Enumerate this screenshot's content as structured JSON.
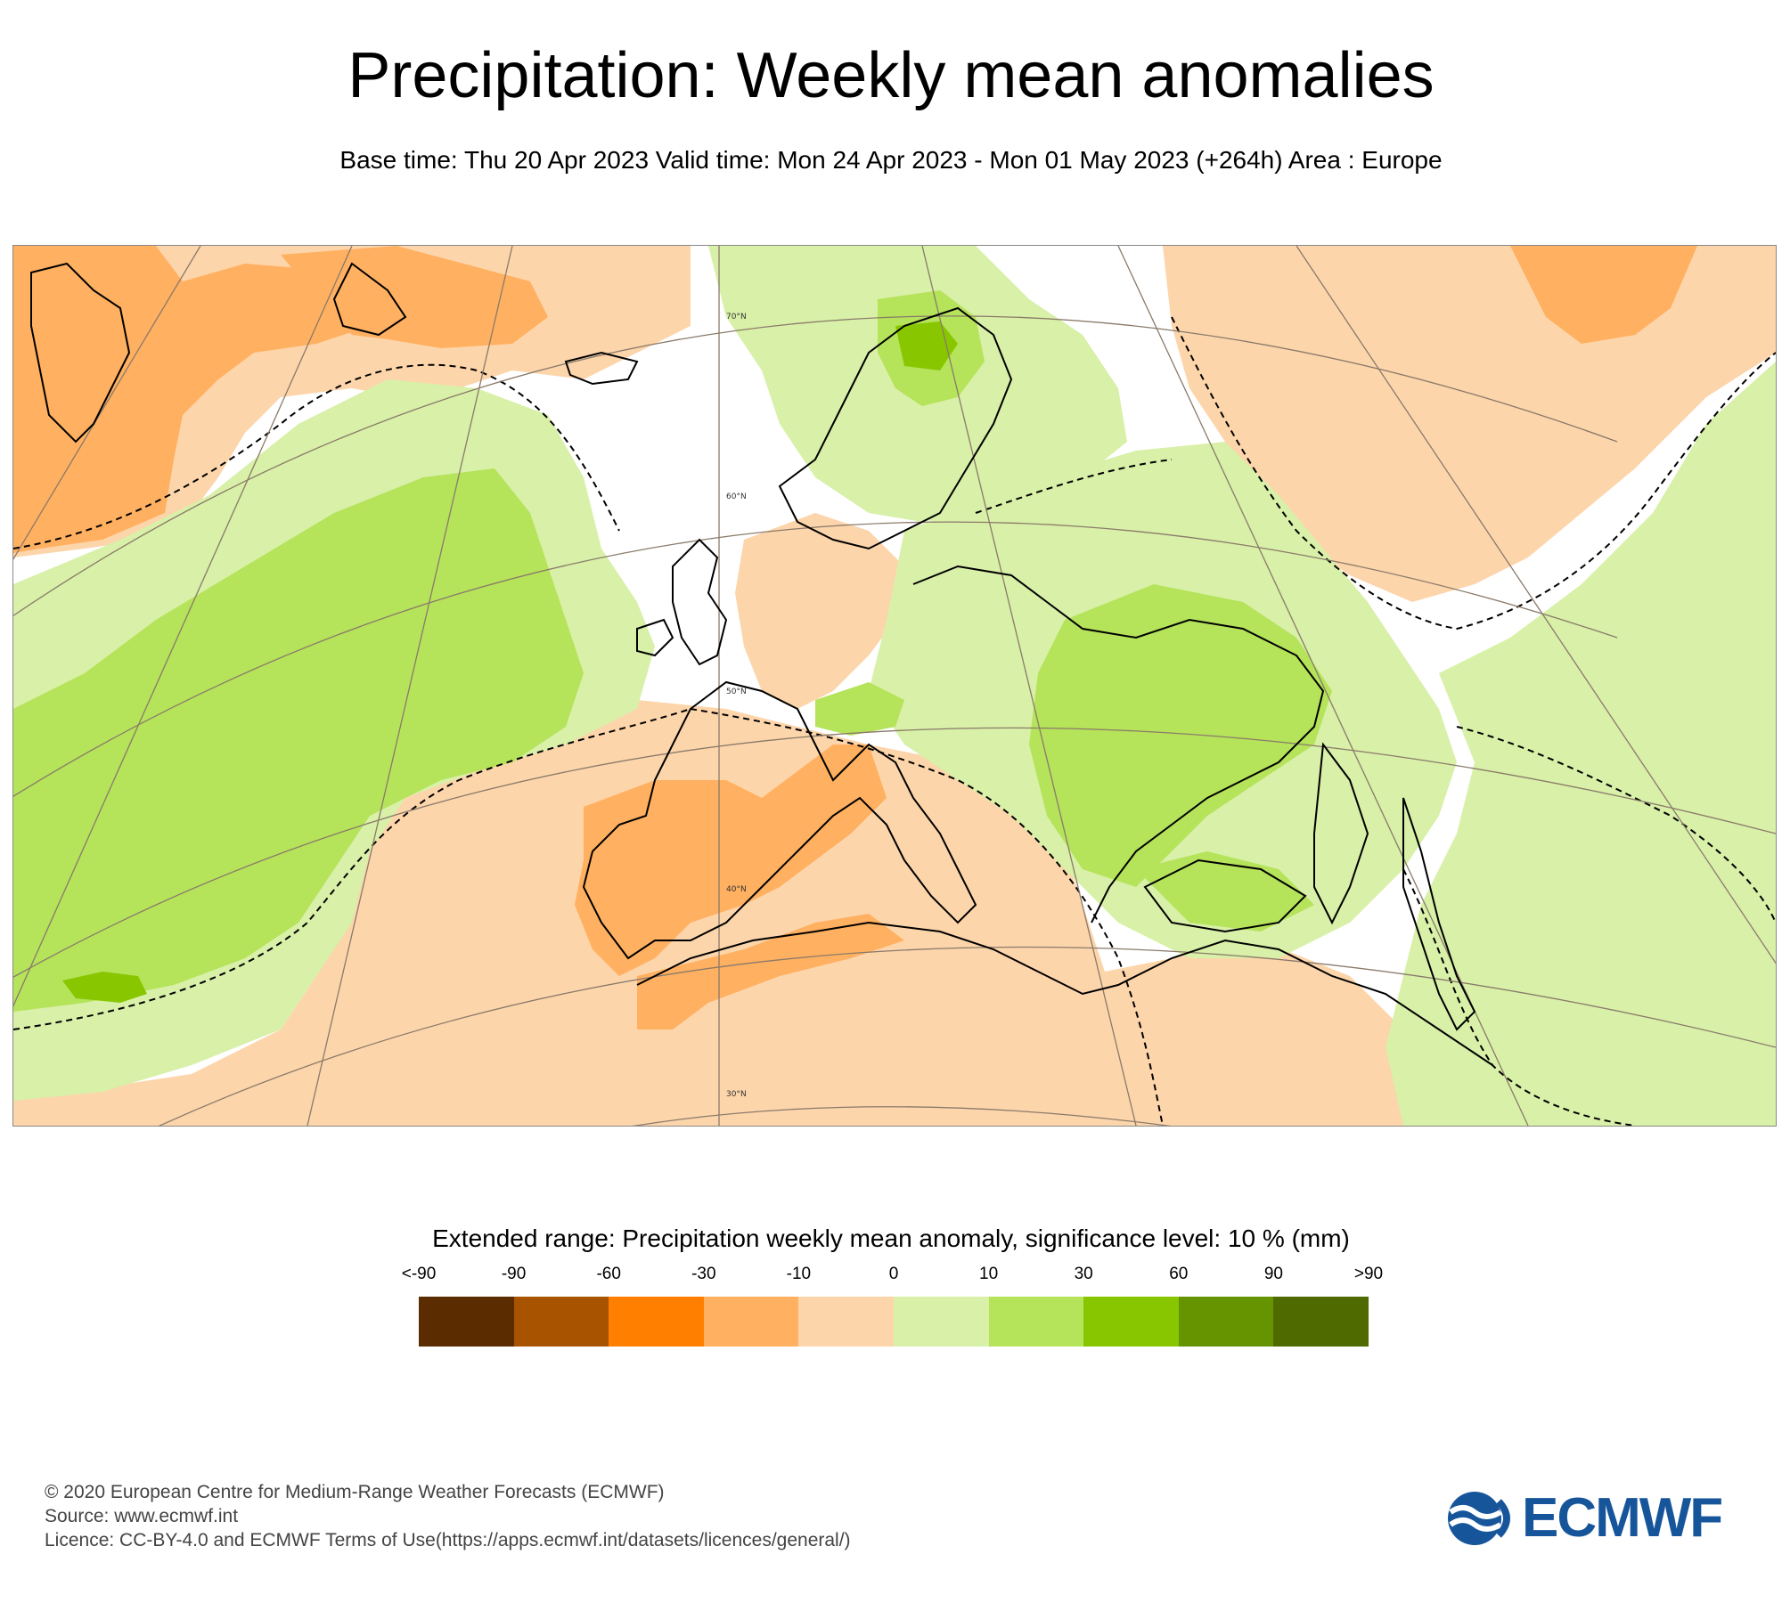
{
  "header": {
    "title": "Precipitation: Weekly mean anomalies",
    "subtitle": "Base time: Thu 20 Apr 2023 Valid time: Mon 24 Apr 2023 - Mon 01 May 2023 (+264h) Area : Europe"
  },
  "map": {
    "area": "Europe",
    "latitude_labels": [
      "70°N",
      "60°N",
      "50°N",
      "40°N",
      "30°N"
    ],
    "colors": {
      "ocean_background": "#ffffff",
      "coastline": "#000000",
      "graticule": "#8a7a6a"
    }
  },
  "legend": {
    "title": "Extended range: Precipitation weekly mean anomaly, significance level: 10 % (mm)",
    "tick_labels": [
      "<-90",
      "-90",
      "-60",
      "-30",
      "-10",
      "0",
      "10",
      "30",
      "60",
      "90",
      ">90"
    ],
    "colors": [
      "#5a2c00",
      "#a85300",
      "#ff7f00",
      "#ffb060",
      "#fdd5ab",
      "#d8f0a8",
      "#b5e35a",
      "#88c700",
      "#669400",
      "#4f6b00"
    ]
  },
  "footer": {
    "copyright": "© 2020 European Centre for Medium-Range Weather Forecasts (ECMWF)",
    "source": "Source: www.ecmwf.int",
    "licence": "Licence: CC-BY-4.0 and ECMWF Terms of Use(https://apps.ecmwf.int/datasets/licences/general/)"
  },
  "logo": {
    "text": "ECMWF",
    "color": "#17559b",
    "icon": "ecmwf-waves-icon"
  }
}
